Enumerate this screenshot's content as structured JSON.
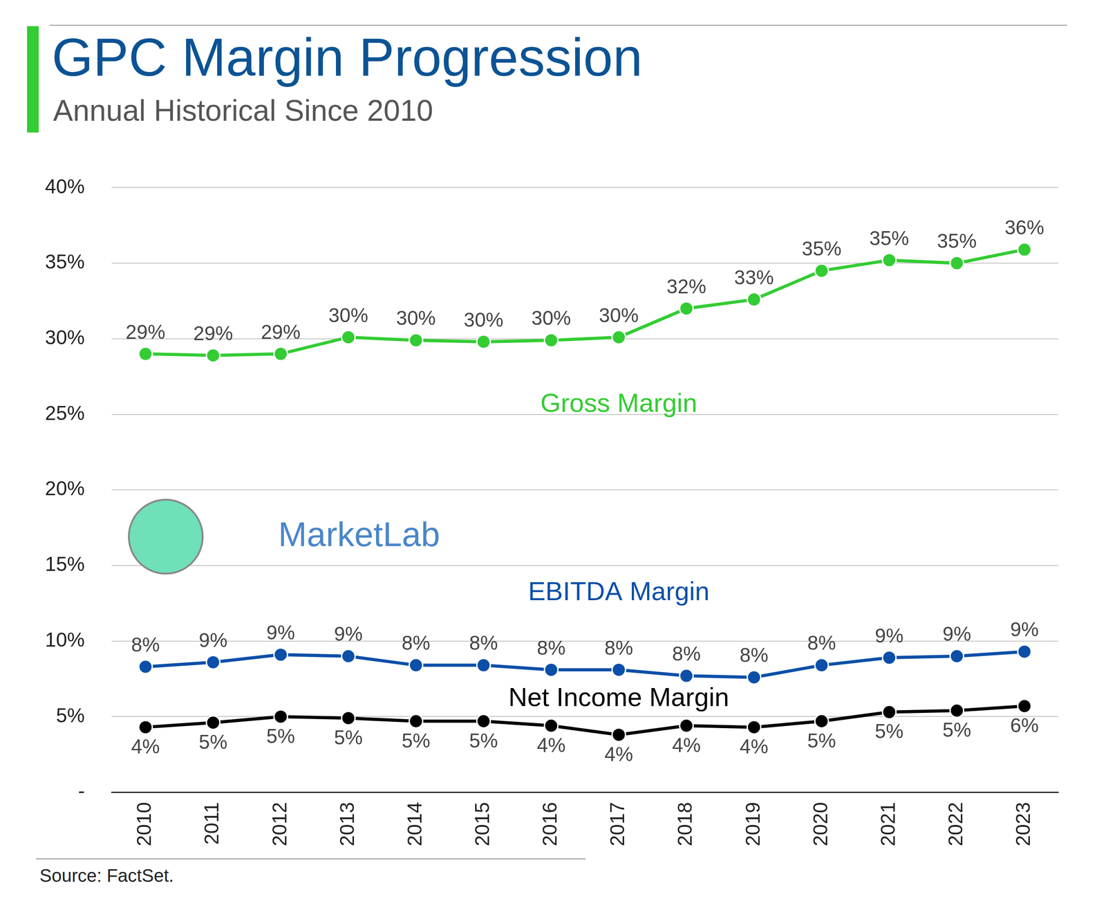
{
  "chart_data": {
    "type": "line",
    "title": "GPC Margin Progression",
    "subtitle": "Annual Historical Since 2010",
    "source": "Source: FactSet.",
    "watermark": "MarketLab",
    "categories": [
      "2010",
      "2011",
      "2012",
      "2013",
      "2014",
      "2015",
      "2016",
      "2017",
      "2018",
      "2019",
      "2020",
      "2021",
      "2022",
      "2023"
    ],
    "series": [
      {
        "name": "Gross Margin",
        "color": "#33cc33",
        "values": [
          29.0,
          28.9,
          29.0,
          30.1,
          29.9,
          29.8,
          29.9,
          30.1,
          32.0,
          32.6,
          34.5,
          35.2,
          35.0,
          35.9
        ],
        "value_labels": [
          "29%",
          "29%",
          "29%",
          "30%",
          "30%",
          "30%",
          "30%",
          "30%",
          "32%",
          "33%",
          "35%",
          "35%",
          "35%",
          "36%"
        ]
      },
      {
        "name": "EBITDA Margin",
        "color": "#0b4fa8",
        "values": [
          8.3,
          8.6,
          9.1,
          9.0,
          8.4,
          8.4,
          8.1,
          8.1,
          7.7,
          7.6,
          8.4,
          8.9,
          9.0,
          9.3
        ],
        "value_labels": [
          "8%",
          "9%",
          "9%",
          "9%",
          "8%",
          "8%",
          "8%",
          "8%",
          "8%",
          "8%",
          "8%",
          "9%",
          "9%",
          "9%"
        ]
      },
      {
        "name": "Net Income Margin",
        "color": "#000000",
        "values": [
          4.3,
          4.6,
          5.0,
          4.9,
          4.7,
          4.7,
          4.4,
          3.8,
          4.4,
          4.3,
          4.7,
          5.3,
          5.4,
          5.7
        ],
        "value_labels": [
          "4%",
          "5%",
          "5%",
          "5%",
          "5%",
          "5%",
          "4%",
          "4%",
          "4%",
          "4%",
          "5%",
          "5%",
          "5%",
          "6%"
        ]
      }
    ],
    "ylim": [
      0,
      40
    ],
    "yticks": [
      {
        "value": 0,
        "label": "-"
      },
      {
        "value": 5,
        "label": "5%"
      },
      {
        "value": 10,
        "label": "10%"
      },
      {
        "value": 15,
        "label": "15%"
      },
      {
        "value": 20,
        "label": "20%"
      },
      {
        "value": 25,
        "label": "25%"
      },
      {
        "value": 30,
        "label": "30%"
      },
      {
        "value": 35,
        "label": "35%"
      },
      {
        "value": 40,
        "label": "40%"
      }
    ],
    "grid": true,
    "data_labels": true,
    "marker": "circle",
    "line_style": "solid"
  }
}
